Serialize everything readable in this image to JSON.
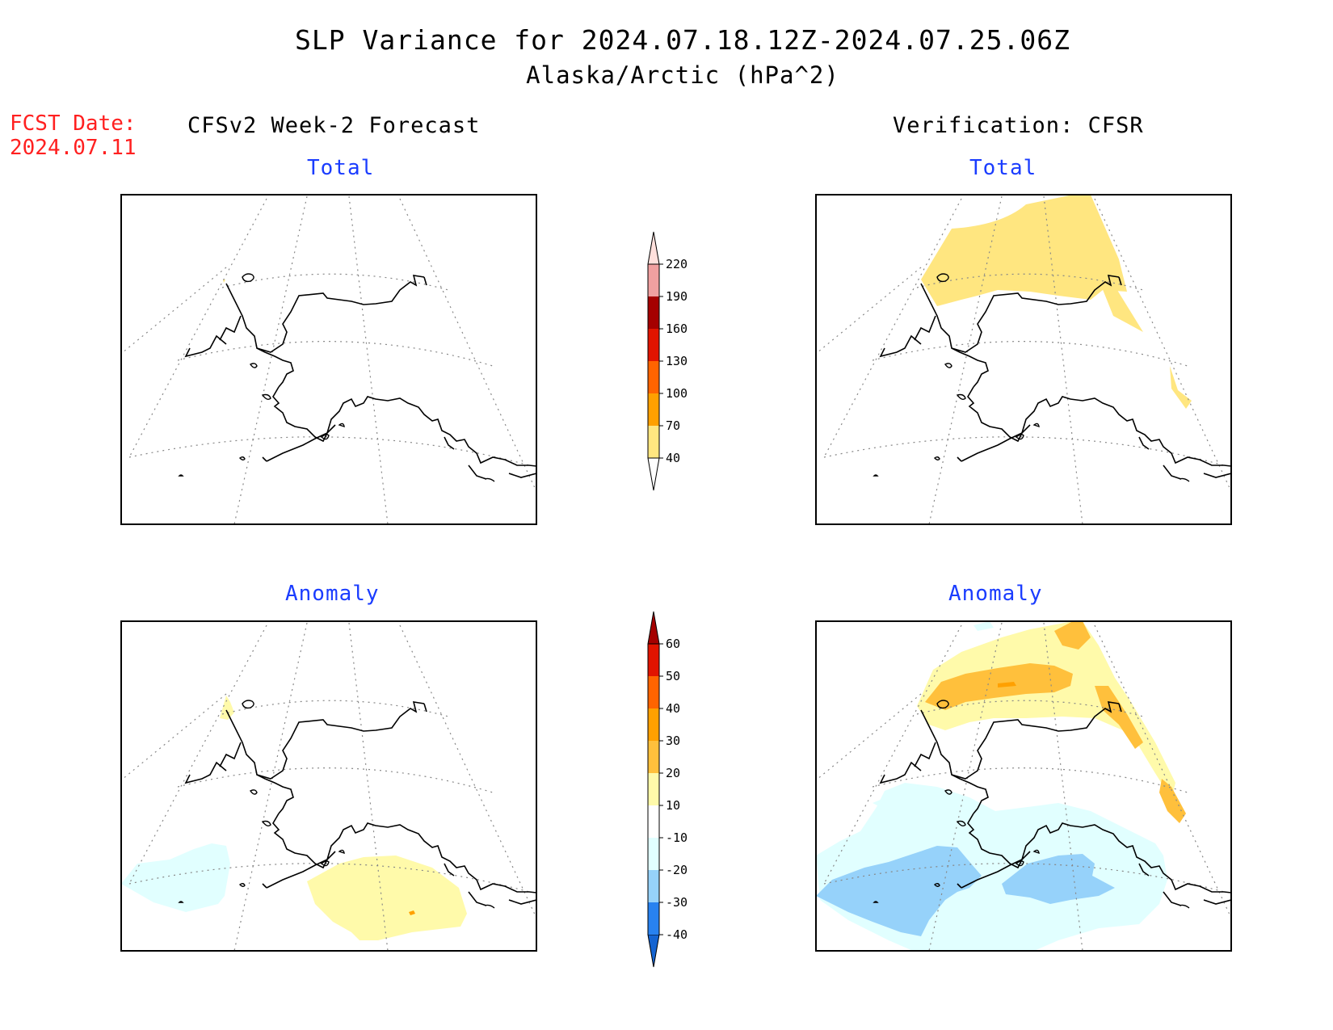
{
  "title": {
    "line1": "SLP Variance for 2024.07.18.12Z-2024.07.25.06Z",
    "line2": "Alaska/Arctic (hPa^2)"
  },
  "forecast_date": {
    "label": "FCST Date:",
    "value": "2024.07.11"
  },
  "columns": {
    "left": "CFSv2 Week-2 Forecast",
    "right": "Verification: CFSR"
  },
  "panels": {
    "top_left": "Total",
    "top_right": "Total",
    "bottom_left": "Anomaly",
    "bottom_right": "Anomaly"
  },
  "legends": {
    "total": {
      "labels": [
        "40",
        "70",
        "100",
        "130",
        "160",
        "190",
        "220"
      ],
      "colors": [
        "#ffe680",
        "#ffa000",
        "#ff6400",
        "#e11400",
        "#a50000",
        "#f0a0a0",
        "#ffe0dc"
      ]
    },
    "anomaly": {
      "labels": [
        "-40",
        "-30",
        "-20",
        "-10",
        "10",
        "20",
        "30",
        "40",
        "50",
        "60"
      ],
      "colors": [
        "#1464d2",
        "#2882f0",
        "#96d2fa",
        "#e1ffff",
        "#ffffff",
        "#fffaaa",
        "#ffc03c",
        "#ffa000",
        "#ff6400",
        "#e11400",
        "#a50000"
      ]
    }
  },
  "colors": {
    "title_text": "#000000",
    "forecast_date_text": "#ff2020",
    "panel_subtitle_text": "#1a3cff"
  }
}
